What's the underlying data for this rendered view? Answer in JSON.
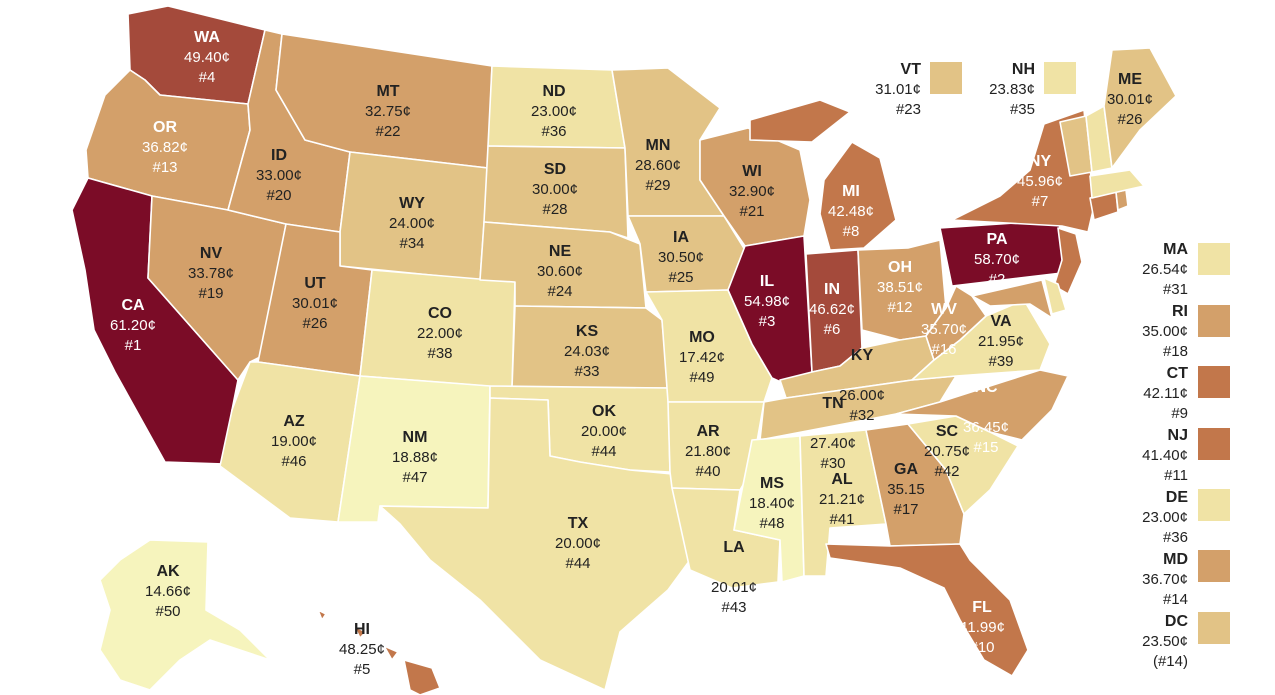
{
  "colors": {
    "tier1": "#f6f4bd",
    "tier2": "#f0e3a5",
    "tier3": "#e2c386",
    "tier4": "#d3a06a",
    "tier5": "#c2774b",
    "tier6": "#a44a3b",
    "tier7": "#7b0c27",
    "text_dark": "#222222",
    "text_light": "#ffffff"
  },
  "states": {
    "WA": {
      "abbr": "WA",
      "price": "49.40¢",
      "rank": "#4"
    },
    "OR": {
      "abbr": "OR",
      "price": "36.82¢",
      "rank": "#13"
    },
    "CA": {
      "abbr": "CA",
      "price": "61.20¢",
      "rank": "#1"
    },
    "NV": {
      "abbr": "NV",
      "price": "33.78¢",
      "rank": "#19"
    },
    "ID": {
      "abbr": "ID",
      "price": "33.00¢",
      "rank": "#20"
    },
    "MT": {
      "abbr": "MT",
      "price": "32.75¢",
      "rank": "#22"
    },
    "WY": {
      "abbr": "WY",
      "price": "24.00¢",
      "rank": "#34"
    },
    "UT": {
      "abbr": "UT",
      "price": "30.01¢",
      "rank": "#26"
    },
    "AZ": {
      "abbr": "AZ",
      "price": "19.00¢",
      "rank": "#46"
    },
    "CO": {
      "abbr": "CO",
      "price": "22.00¢",
      "rank": "#38"
    },
    "NM": {
      "abbr": "NM",
      "price": "18.88¢",
      "rank": "#47"
    },
    "ND": {
      "abbr": "ND",
      "price": "23.00¢",
      "rank": "#36"
    },
    "SD": {
      "abbr": "SD",
      "price": "30.00¢",
      "rank": "#28"
    },
    "NE": {
      "abbr": "NE",
      "price": "30.60¢",
      "rank": "#24"
    },
    "KS": {
      "abbr": "KS",
      "price": "24.03¢",
      "rank": "#33"
    },
    "OK": {
      "abbr": "OK",
      "price": "20.00¢",
      "rank": "#44"
    },
    "TX": {
      "abbr": "TX",
      "price": "20.00¢",
      "rank": "#44"
    },
    "MN": {
      "abbr": "MN",
      "price": "28.60¢",
      "rank": "#29"
    },
    "IA": {
      "abbr": "IA",
      "price": "30.50¢",
      "rank": "#25"
    },
    "MO": {
      "abbr": "MO",
      "price": "17.42¢",
      "rank": "#49"
    },
    "AR": {
      "abbr": "AR",
      "price": "21.80¢",
      "rank": "#40"
    },
    "LA": {
      "abbr": "LA",
      "price": "20.01¢",
      "rank": "#43"
    },
    "WI": {
      "abbr": "WI",
      "price": "32.90¢",
      "rank": "#21"
    },
    "IL": {
      "abbr": "IL",
      "price": "54.98¢",
      "rank": "#3"
    },
    "MI": {
      "abbr": "MI",
      "price": "42.48¢",
      "rank": "#8"
    },
    "IN": {
      "abbr": "IN",
      "price": "46.62¢",
      "rank": "#6"
    },
    "OH": {
      "abbr": "OH",
      "price": "38.51¢",
      "rank": "#12"
    },
    "KY": {
      "abbr": "KY",
      "price": "26.00¢",
      "rank": "#32"
    },
    "TN": {
      "abbr": "TN",
      "price": "27.40¢",
      "rank": "#30"
    },
    "MS": {
      "abbr": "MS",
      "price": "18.40¢",
      "rank": "#48"
    },
    "AL": {
      "abbr": "AL",
      "price": "21.21¢",
      "rank": "#41"
    },
    "GA": {
      "abbr": "GA",
      "price": "35.15",
      "rank": "#17"
    },
    "FL": {
      "abbr": "FL",
      "price": "41.99¢",
      "rank": "#10"
    },
    "SC": {
      "abbr": "SC",
      "price": "20.75¢",
      "rank": "#42"
    },
    "NC": {
      "abbr": "NC",
      "price": "36.45¢",
      "rank": "#15"
    },
    "VA": {
      "abbr": "VA",
      "price": "21.95¢",
      "rank": "#39"
    },
    "WV": {
      "abbr": "WV",
      "price": "35.70¢",
      "rank": "#16"
    },
    "PA": {
      "abbr": "PA",
      "price": "58.70¢",
      "rank": "#2"
    },
    "NY": {
      "abbr": "NY",
      "price": "45.96¢",
      "rank": "#7"
    },
    "ME": {
      "abbr": "ME",
      "price": "30.01¢",
      "rank": "#26"
    },
    "AK": {
      "abbr": "AK",
      "price": "14.66¢",
      "rank": "#50"
    },
    "HI": {
      "abbr": "HI",
      "price": "48.25¢",
      "rank": "#5"
    }
  },
  "callouts": {
    "VT": {
      "abbr": "VT",
      "price": "31.01¢",
      "rank": "#23"
    },
    "NH": {
      "abbr": "NH",
      "price": "23.83¢",
      "rank": "#35"
    },
    "MA": {
      "abbr": "MA",
      "price": "26.54¢",
      "rank": "#31"
    },
    "RI": {
      "abbr": "RI",
      "price": "35.00¢",
      "rank": "#18"
    },
    "CT": {
      "abbr": "CT",
      "price": "42.11¢",
      "rank": "#9"
    },
    "NJ": {
      "abbr": "NJ",
      "price": "41.40¢",
      "rank": "#11"
    },
    "DE": {
      "abbr": "DE",
      "price": "23.00¢",
      "rank": "#36"
    },
    "MD": {
      "abbr": "MD",
      "price": "36.70¢",
      "rank": "#14"
    },
    "DC": {
      "abbr": "DC",
      "price": "23.50¢",
      "rank": "(#14)"
    }
  }
}
